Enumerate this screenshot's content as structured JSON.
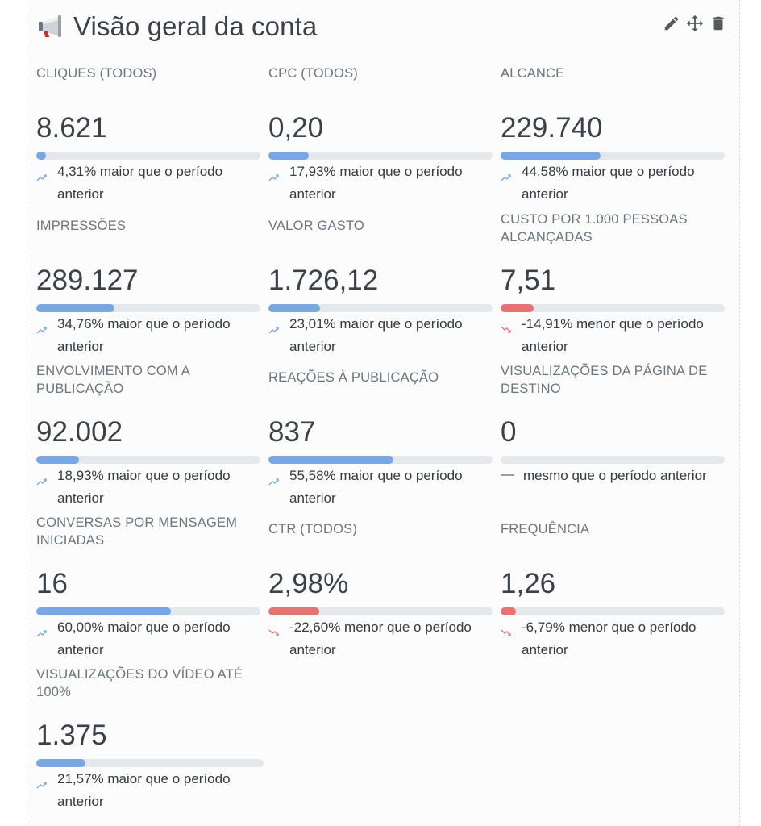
{
  "header": {
    "title": "Visão geral da conta"
  },
  "colors": {
    "positive": "#7aa7e2",
    "negative": "#e57373",
    "track": "#e5e8eb"
  },
  "metrics": [
    {
      "label": "CLIQUES (TODOS)",
      "value": "8.621",
      "comparison": "4,31% maior que o período anterior",
      "trend": "up",
      "fill_fraction": 0.043
    },
    {
      "label": "CPC (TODOS)",
      "value": "0,20",
      "comparison": "17,93% maior que o período anterior",
      "trend": "up",
      "fill_fraction": 0.179
    },
    {
      "label": "ALCANCE",
      "value": "229.740",
      "comparison": "44,58% maior que o período anterior",
      "trend": "up",
      "fill_fraction": 0.446
    },
    {
      "label": "IMPRESSÕES",
      "value": "289.127",
      "comparison": "34,76% maior que o período anterior",
      "trend": "up",
      "fill_fraction": 0.348
    },
    {
      "label": "VALOR GASTO",
      "value": "1.726,12",
      "comparison": "23,01% maior que o período anterior",
      "trend": "up",
      "fill_fraction": 0.23
    },
    {
      "label": "CUSTO POR 1.000 PESSOAS ALCANÇADAS",
      "value": "7,51",
      "comparison": "-14,91% menor que o período anterior",
      "trend": "down",
      "fill_fraction": 0.149
    },
    {
      "label": "ENVOLVIMENTO COM A PUBLICAÇÃO",
      "value": "92.002",
      "comparison": "18,93% maior que o período anterior",
      "trend": "up",
      "fill_fraction": 0.189
    },
    {
      "label": "REAÇÕES À PUBLICAÇÃO",
      "value": "837",
      "comparison": "55,58% maior que o período anterior",
      "trend": "up",
      "fill_fraction": 0.556
    },
    {
      "label": "VISUALIZAÇÕES DA PÁGINA DE DESTINO",
      "value": "0",
      "comparison": "mesmo que o período anterior",
      "trend": "flat",
      "fill_fraction": 0
    },
    {
      "label": "CONVERSAS POR MENSAGEM INICIADAS",
      "value": "16",
      "comparison": "60,00% maior que o período anterior",
      "trend": "up",
      "fill_fraction": 0.6
    },
    {
      "label": "CTR (TODOS)",
      "value": "2,98%",
      "comparison": "-22,60% menor que o período anterior",
      "trend": "down",
      "fill_fraction": 0.226
    },
    {
      "label": "FREQUÊNCIA",
      "value": "1,26",
      "comparison": "-6,79% menor que o período anterior",
      "trend": "down",
      "fill_fraction": 0.068
    },
    {
      "label": "VISUALIZAÇÕES DO VÍDEO ATÉ 100%",
      "value": "1.375",
      "comparison": "21,57% maior que o período anterior",
      "trend": "up",
      "fill_fraction": 0.216
    }
  ]
}
